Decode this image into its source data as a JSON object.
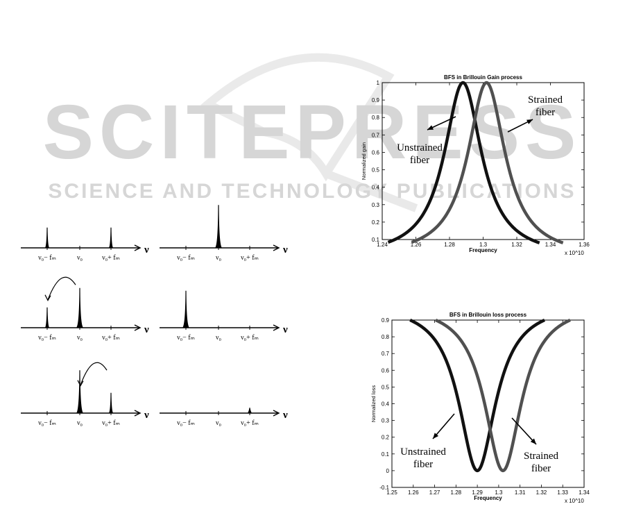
{
  "watermark": {
    "main": "SCITEPRESS",
    "sub": "SCIENCE AND TECHNOLOGY PUBLICATIONS"
  },
  "spectra": {
    "axis_symbol": "ν",
    "rows": [
      {
        "left": {
          "labels": [
            "ν₀− fₘ",
            "ν₀",
            "ν₀+ fₘ"
          ],
          "peaks": [
            {
              "pos": 0,
              "height": 0.45
            },
            {
              "pos": 2,
              "height": 0.45
            }
          ],
          "arrow": ""
        },
        "right": {
          "labels": [
            "ν₀− fₘ",
            "ν₀",
            "ν₀+ fₘ"
          ],
          "peaks": [
            {
              "pos": 1,
              "height": 0.95
            }
          ],
          "arrow": ""
        }
      },
      {
        "left": {
          "labels": [
            "ν₀− fₘ",
            "ν₀",
            "ν₀+ fₘ"
          ],
          "peaks": [
            {
              "pos": 0,
              "height": 0.45
            },
            {
              "pos": 1,
              "height": 0.88
            }
          ],
          "arrow": "1to0"
        },
        "right": {
          "labels": [
            "ν₀− fₘ",
            "ν₀",
            "ν₀+ fₘ"
          ],
          "peaks": [
            {
              "pos": 0,
              "height": 0.82
            }
          ],
          "arrow": ""
        }
      },
      {
        "left": {
          "labels": [
            "ν₀− fₘ",
            "ν₀",
            "ν₀+ fₘ"
          ],
          "peaks": [
            {
              "pos": 1,
              "height": 0.95
            },
            {
              "pos": 2,
              "height": 0.45
            }
          ],
          "arrow": "2to1"
        },
        "right": {
          "labels": [
            "ν₀− fₘ",
            "ν₀",
            "ν₀+ fₘ"
          ],
          "peaks": [
            {
              "pos": 2,
              "height": 0.12
            }
          ],
          "arrow": ""
        }
      }
    ]
  },
  "chart_data": [
    {
      "type": "line",
      "title": "BFS in Brillouin Gain process",
      "xlabel": "Frequency",
      "ylabel": "Normalized gain",
      "x_multiplier": "x 10^10",
      "xlim": [
        1.24,
        1.36
      ],
      "ylim": [
        0.1,
        1.0
      ],
      "xticks": [
        "1.24",
        "1.26",
        "1.28",
        "1.3",
        "1.32",
        "1.34",
        "1.36"
      ],
      "yticks": [
        "0.1",
        "0.2",
        "0.3",
        "0.4",
        "0.5",
        "0.6",
        "0.7",
        "0.8",
        "0.9",
        "1"
      ],
      "series": [
        {
          "center": 1.288,
          "width": 0.0135,
          "color": "#111111",
          "x_range": [
            1.2435,
            1.3335
          ]
        },
        {
          "center": 1.302,
          "width": 0.0135,
          "color": "#505050",
          "x_range": [
            1.2575,
            1.3475
          ]
        }
      ],
      "annotations": [
        {
          "text": [
            "Unstrained",
            "fiber"
          ]
        },
        {
          "text": [
            "Strained",
            "fiber"
          ]
        }
      ]
    },
    {
      "type": "line",
      "title": "BFS in Brillouin loss process",
      "xlabel": "Frequency",
      "ylabel": "Normalized loss",
      "x_multiplier": "x 10^10",
      "xlim": [
        1.25,
        1.34
      ],
      "ylim": [
        -0.1,
        0.9
      ],
      "xticks": [
        "1.25",
        "1.26",
        "1.27",
        "1.28",
        "1.29",
        "1.3",
        "1.31",
        "1.32",
        "1.33",
        "1.34"
      ],
      "yticks": [
        "-0.1",
        "0",
        "0.1",
        "0.2",
        "0.3",
        "0.4",
        "0.5",
        "0.6",
        "0.7",
        "0.8",
        "0.9"
      ],
      "series": [
        {
          "center": 1.29,
          "width": 0.0105,
          "color": "#111111",
          "x_range": [
            1.2585,
            1.3215
          ]
        },
        {
          "center": 1.302,
          "width": 0.0105,
          "color": "#505050",
          "x_range": [
            1.2705,
            1.3335
          ]
        }
      ],
      "annotations": [
        {
          "text": [
            "Unstrained",
            "fiber"
          ]
        },
        {
          "text": [
            "Strained",
            "fiber"
          ]
        }
      ]
    }
  ]
}
